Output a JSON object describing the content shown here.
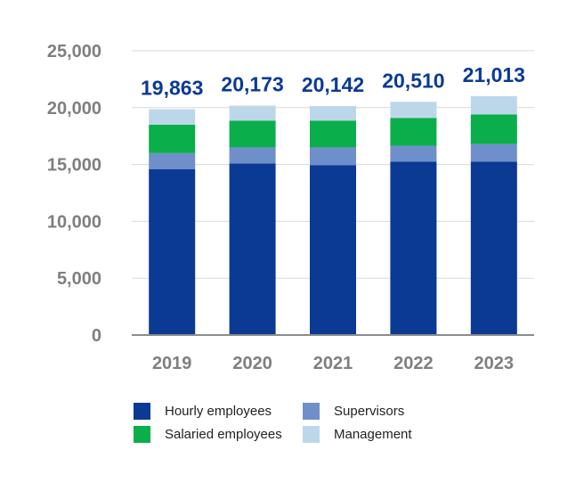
{
  "chart_data": {
    "type": "bar",
    "stacked": true,
    "categories": [
      "2019",
      "2020",
      "2021",
      "2022",
      "2023"
    ],
    "series": [
      {
        "name": "Hourly employees",
        "color": "#0a3a94",
        "values": [
          14600,
          15100,
          14950,
          15250,
          15250
        ]
      },
      {
        "name": "Supervisors",
        "color": "#6f8fcb",
        "values": [
          1400,
          1400,
          1550,
          1400,
          1550
        ]
      },
      {
        "name": "Salaried employees",
        "color": "#0aae4b",
        "values": [
          2500,
          2350,
          2350,
          2450,
          2600
        ]
      },
      {
        "name": "Management",
        "color": "#bdd7ea",
        "values": [
          1363,
          1323,
          1292,
          1410,
          1613
        ]
      }
    ],
    "totals": [
      "19,863",
      "20,173",
      "20,142",
      "20,510",
      "21,013"
    ],
    "y_ticks": [
      "0",
      "5,000",
      "10,000",
      "15,000",
      "20,000",
      "25,000"
    ],
    "ylim": [
      0,
      25000
    ],
    "title": "",
    "xlabel": "",
    "ylabel": "",
    "grid": true,
    "legend_position": "bottom"
  },
  "legend": {
    "items": [
      {
        "label": "Hourly employees",
        "color": "#0a3a94"
      },
      {
        "label": "Supervisors",
        "color": "#6f8fcb"
      },
      {
        "label": "Salaried employees",
        "color": "#0aae4b"
      },
      {
        "label": "Management",
        "color": "#bdd7ea"
      }
    ]
  },
  "colors": {
    "total_label": "#0a3a94",
    "axis_label": "#7f7f7f",
    "grid": "#d9d9d9"
  }
}
